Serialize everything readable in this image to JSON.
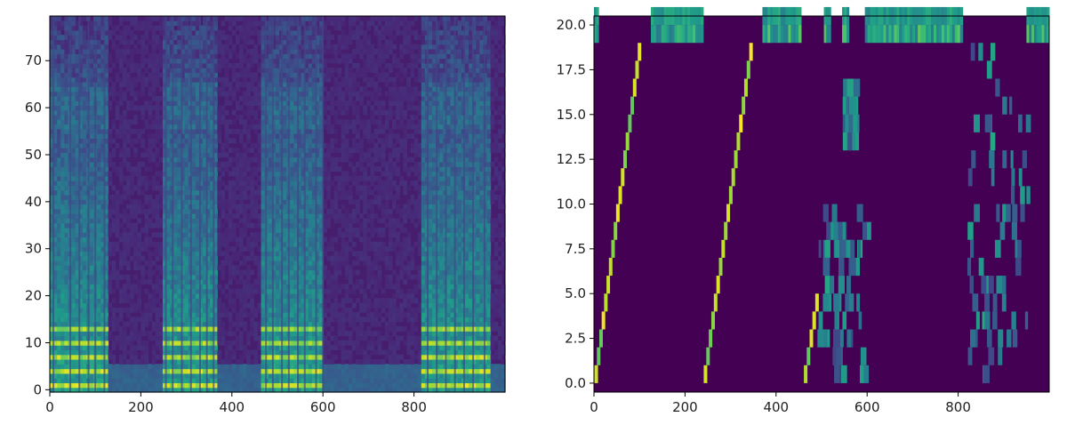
{
  "chart_data": [
    {
      "type": "heatmap",
      "x_ticks": [
        0,
        200,
        400,
        600,
        800
      ],
      "y_ticks": [
        0,
        10,
        20,
        30,
        40,
        50,
        60,
        70
      ],
      "x_tick_labels": [
        "0",
        "200",
        "400",
        "600",
        "800"
      ],
      "y_tick_labels": [
        "0",
        "10",
        "20",
        "30",
        "40",
        "50",
        "60",
        "70"
      ],
      "xlim": [
        0,
        1000
      ],
      "ylim": [
        -0.5,
        79.5
      ],
      "rows": 80,
      "colormap": "viridis",
      "grid": false,
      "active_segments": [
        [
          0,
          125
        ],
        [
          250,
          365
        ],
        [
          465,
          600
        ],
        [
          820,
          965
        ]
      ],
      "vertical_lines_x": [
        8,
        45,
        65,
        85,
        100,
        120,
        255,
        270,
        290,
        310,
        330,
        345,
        360,
        475,
        490,
        510,
        525,
        545,
        560,
        585,
        600,
        830,
        850,
        870,
        890,
        910,
        930,
        955
      ]
    },
    {
      "type": "heatmap",
      "x_ticks": [
        0,
        200,
        400,
        600,
        800
      ],
      "y_ticks": [
        0.0,
        2.5,
        5.0,
        7.5,
        10.0,
        12.5,
        15.0,
        17.5,
        20.0
      ],
      "x_tick_labels": [
        "0",
        "200",
        "400",
        "600",
        "800"
      ],
      "y_tick_labels": [
        "0.0",
        "2.5",
        "5.0",
        "7.5",
        "10.0",
        "12.5",
        "15.0",
        "17.5",
        "20.0"
      ],
      "xlim": [
        0,
        1000
      ],
      "ylim": [
        -0.5,
        20.5
      ],
      "rows": 21,
      "colormap": "viridis",
      "grid": false,
      "top_band_segments": [
        [
          0,
          10
        ],
        [
          125,
          240
        ],
        [
          370,
          455
        ],
        [
          505,
          520
        ],
        [
          545,
          560
        ],
        [
          595,
          810
        ],
        [
          950,
          1000
        ]
      ],
      "diagonals": [
        {
          "x0": 5,
          "x1": 100,
          "y0": 0,
          "y1": 18
        },
        {
          "x0": 245,
          "x1": 345,
          "y0": 0,
          "y1": 18
        },
        {
          "x0": 465,
          "x1": 490,
          "y0": 0,
          "y1": 4
        }
      ],
      "scatter_blocks": [
        {
          "x0": 490,
          "x1": 600,
          "y0": 0,
          "y1": 9
        },
        {
          "x0": 545,
          "x1": 570,
          "y0": 13,
          "y1": 16
        },
        {
          "x0": 820,
          "x1": 950,
          "y0": 0,
          "y1": 18
        }
      ]
    }
  ]
}
